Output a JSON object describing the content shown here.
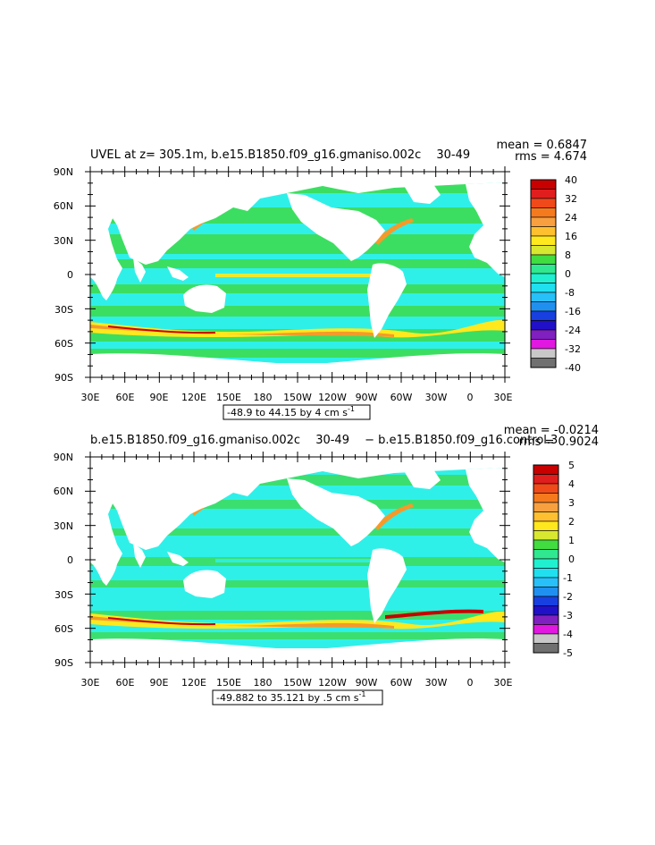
{
  "panels": [
    {
      "title": "UVEL at z= 305.1m, b.e15.B1850.f09_g16.gmaniso.002c 　30-49　",
      "mean": "mean = 0.6847",
      "rms": "rms = 4.674",
      "lat_labels": [
        "90N",
        "60N",
        "30N",
        "0",
        "30S",
        "60S",
        "90S"
      ],
      "lon_labels": [
        "30E",
        "60E",
        "90E",
        "120E",
        "150E",
        "180",
        "150W",
        "120W",
        "90W",
        "60W",
        "30W",
        "0",
        "30E"
      ],
      "range_text": "-48.9 to 44.15 by 4 cm s",
      "range_sup": "-1",
      "colorbar_labels": [
        "40",
        "32",
        "24",
        "16",
        "8",
        "0",
        "-8",
        "-16",
        "-24",
        "-32",
        "-40"
      ]
    },
    {
      "title": "b.e15.B1850.f09_g16.gmaniso.002c 　30-49　 − b.e15.B1850.f09_g16.control.3",
      "mean": "mean = -0.0214",
      "rms": "rms = 0.9024",
      "lat_labels": [
        "90N",
        "60N",
        "30N",
        "0",
        "30S",
        "60S",
        "90S"
      ],
      "lon_labels": [
        "30E",
        "60E",
        "90E",
        "120E",
        "150E",
        "180",
        "150W",
        "120W",
        "90W",
        "60W",
        "30W",
        "0",
        "30E"
      ],
      "range_text": "-49.882 to 35.121 by .5 cm s",
      "range_sup": "-1",
      "colorbar_labels": [
        "5",
        "4",
        "3",
        "2",
        "1",
        "0",
        "-1",
        "-2",
        "-3",
        "-4",
        "-5"
      ]
    }
  ],
  "colorbar_colors": [
    "#c80000",
    "#e01e1e",
    "#f04a1a",
    "#f57a1e",
    "#f8a040",
    "#ffc030",
    "#ffe81e",
    "#d8e830",
    "#40dc40",
    "#30e890",
    "#20f0d0",
    "#20e0f0",
    "#28c0f8",
    "#2090f0",
    "#1840e0",
    "#2010c8",
    "#8020c0",
    "#e018e0",
    "#c8c8c8",
    "#707070"
  ],
  "colors": {
    "ocean_base": "#2ff0e8",
    "ocean_green": "#3ddc5a",
    "ocean_yellow": "#ffe81e",
    "ocean_orange": "#f59a2a",
    "ocean_red": "#c80000",
    "land": "#ffffff"
  }
}
